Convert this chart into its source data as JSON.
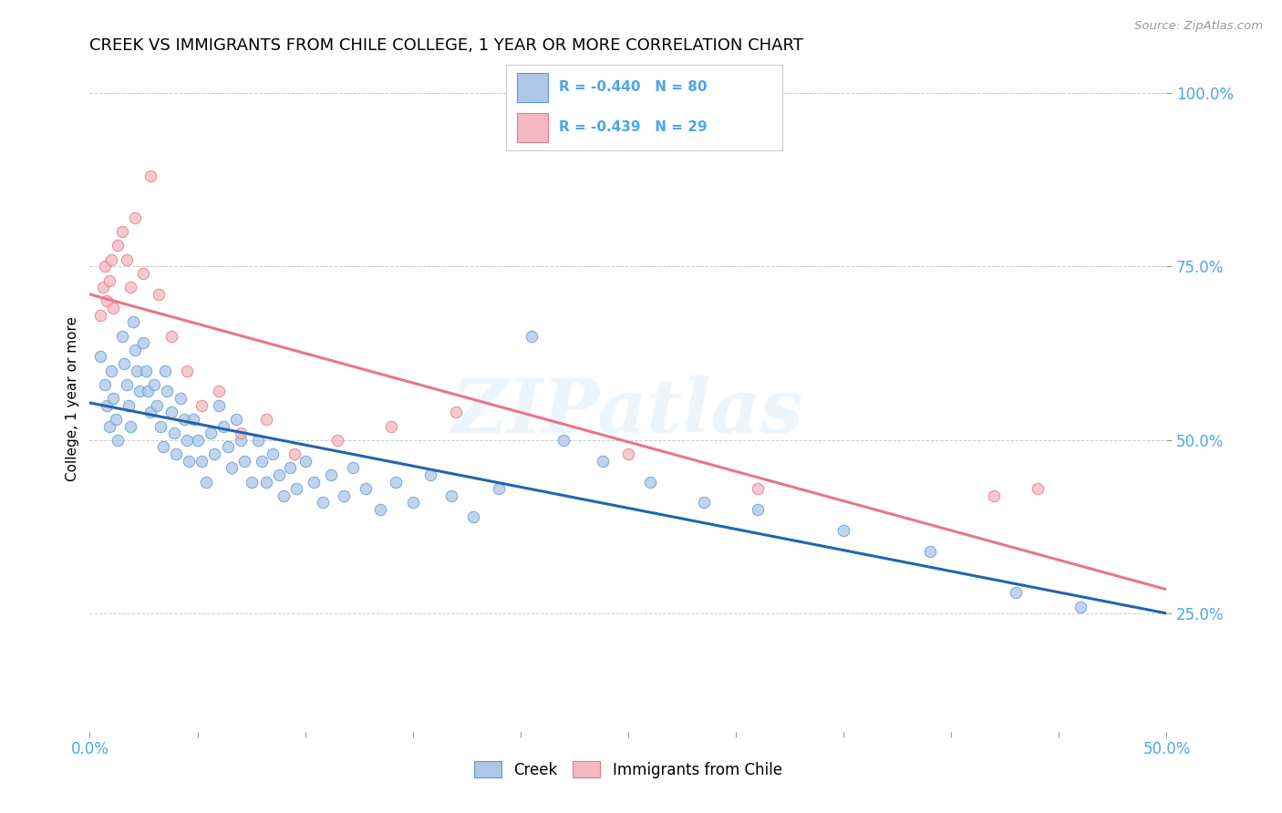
{
  "title": "CREEK VS IMMIGRANTS FROM CHILE COLLEGE, 1 YEAR OR MORE CORRELATION CHART",
  "source_text": "Source: ZipAtlas.com",
  "ylabel": "College, 1 year or more",
  "xmin": 0.0,
  "xmax": 0.5,
  "ymin": 0.08,
  "ymax": 1.04,
  "legend_entries": [
    {
      "label": "Creek",
      "color": "#aec6e8",
      "edge_color": "#5b9bd5",
      "R": "-0.440",
      "N": "80"
    },
    {
      "label": "Immigrants from Chile",
      "color": "#f4b8c1",
      "edge_color": "#e8758a",
      "R": "-0.439",
      "N": "29"
    }
  ],
  "creek_x": [
    0.005,
    0.007,
    0.008,
    0.009,
    0.01,
    0.011,
    0.012,
    0.013,
    0.015,
    0.016,
    0.017,
    0.018,
    0.019,
    0.02,
    0.021,
    0.022,
    0.023,
    0.025,
    0.026,
    0.027,
    0.028,
    0.03,
    0.031,
    0.033,
    0.034,
    0.035,
    0.036,
    0.038,
    0.039,
    0.04,
    0.042,
    0.044,
    0.045,
    0.046,
    0.048,
    0.05,
    0.052,
    0.054,
    0.056,
    0.058,
    0.06,
    0.062,
    0.064,
    0.066,
    0.068,
    0.07,
    0.072,
    0.075,
    0.078,
    0.08,
    0.082,
    0.085,
    0.088,
    0.09,
    0.093,
    0.096,
    0.1,
    0.104,
    0.108,
    0.112,
    0.118,
    0.122,
    0.128,
    0.135,
    0.142,
    0.15,
    0.158,
    0.168,
    0.178,
    0.19,
    0.205,
    0.22,
    0.238,
    0.26,
    0.285,
    0.31,
    0.35,
    0.39,
    0.43,
    0.46
  ],
  "creek_y": [
    0.62,
    0.58,
    0.55,
    0.52,
    0.6,
    0.56,
    0.53,
    0.5,
    0.65,
    0.61,
    0.58,
    0.55,
    0.52,
    0.67,
    0.63,
    0.6,
    0.57,
    0.64,
    0.6,
    0.57,
    0.54,
    0.58,
    0.55,
    0.52,
    0.49,
    0.6,
    0.57,
    0.54,
    0.51,
    0.48,
    0.56,
    0.53,
    0.5,
    0.47,
    0.53,
    0.5,
    0.47,
    0.44,
    0.51,
    0.48,
    0.55,
    0.52,
    0.49,
    0.46,
    0.53,
    0.5,
    0.47,
    0.44,
    0.5,
    0.47,
    0.44,
    0.48,
    0.45,
    0.42,
    0.46,
    0.43,
    0.47,
    0.44,
    0.41,
    0.45,
    0.42,
    0.46,
    0.43,
    0.4,
    0.44,
    0.41,
    0.45,
    0.42,
    0.39,
    0.43,
    0.65,
    0.5,
    0.47,
    0.44,
    0.41,
    0.4,
    0.37,
    0.34,
    0.28,
    0.26
  ],
  "chile_x": [
    0.005,
    0.006,
    0.007,
    0.008,
    0.009,
    0.01,
    0.011,
    0.013,
    0.015,
    0.017,
    0.019,
    0.021,
    0.025,
    0.028,
    0.032,
    0.038,
    0.045,
    0.052,
    0.06,
    0.07,
    0.082,
    0.095,
    0.115,
    0.14,
    0.17,
    0.25,
    0.31,
    0.42,
    0.44
  ],
  "chile_y": [
    0.68,
    0.72,
    0.75,
    0.7,
    0.73,
    0.76,
    0.69,
    0.78,
    0.8,
    0.76,
    0.72,
    0.82,
    0.74,
    0.88,
    0.71,
    0.65,
    0.6,
    0.55,
    0.57,
    0.51,
    0.53,
    0.48,
    0.5,
    0.52,
    0.54,
    0.48,
    0.43,
    0.42,
    0.43
  ],
  "creek_line_color": "#2166ac",
  "chile_line_color": "#e8758a",
  "background_color": "#ffffff",
  "grid_color": "#cccccc",
  "scatter_alpha": 0.75,
  "scatter_size": 80,
  "title_fontsize": 13,
  "axis_tick_color": "#4da6e8",
  "watermark_text": "ZIPatlas",
  "legend_text_color": "#4da6e8"
}
